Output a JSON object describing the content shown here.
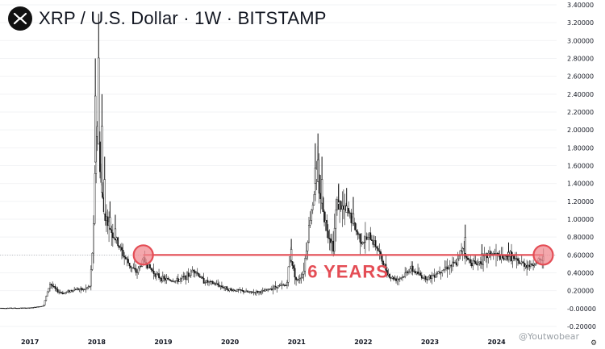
{
  "header": {
    "title": "XRP / U.S. Dollar · 1W · BITSTAMP"
  },
  "watermark": "@Youtwobear",
  "colors": {
    "candle": "#111111",
    "annotation": "#e44d55",
    "annotation_fill": "#f08a90"
  },
  "icons": {
    "logo": "xrp-logo-icon",
    "settings": "gear-icon"
  },
  "chart_data": {
    "type": "candlestick",
    "y_ticks": [
      "-0.20000",
      "-0.00000",
      "0.20000",
      "0.40000",
      "0.60000",
      "0.80000",
      "1.00000",
      "1.20000",
      "1.40000",
      "1.60000",
      "1.80000",
      "2.00000",
      "2.20000",
      "2.40000",
      "2.60000",
      "2.80000",
      "3.00000",
      "3.20000",
      "3.40000"
    ],
    "ylim": [
      -0.2,
      3.4
    ],
    "x_ticks": [
      "2017",
      "2018",
      "2019",
      "2020",
      "2021",
      "2022",
      "2023",
      "2024"
    ],
    "xlim": [
      2016.55,
      2024.9
    ],
    "resistance_level": 0.6,
    "resistance_start_marker": 2018.7,
    "resistance_end_marker": 2024.7,
    "annotation_text": "6 YEARS",
    "price_path": [
      [
        2016.55,
        0.006
      ],
      [
        2016.8,
        0.006
      ],
      [
        2017.0,
        0.007
      ],
      [
        2017.2,
        0.03
      ],
      [
        2017.3,
        0.28
      ],
      [
        2017.4,
        0.2
      ],
      [
        2017.5,
        0.17
      ],
      [
        2017.6,
        0.2
      ],
      [
        2017.7,
        0.22
      ],
      [
        2017.8,
        0.21
      ],
      [
        2017.9,
        0.25
      ],
      [
        2017.95,
        0.8
      ],
      [
        2018.0,
        2.2
      ],
      [
        2018.05,
        1.6
      ],
      [
        2018.1,
        1.1
      ],
      [
        2018.2,
        0.9
      ],
      [
        2018.3,
        0.75
      ],
      [
        2018.4,
        0.6
      ],
      [
        2018.5,
        0.48
      ],
      [
        2018.6,
        0.4
      ],
      [
        2018.7,
        0.55
      ],
      [
        2018.8,
        0.45
      ],
      [
        2018.9,
        0.37
      ],
      [
        2019.0,
        0.33
      ],
      [
        2019.2,
        0.31
      ],
      [
        2019.4,
        0.38
      ],
      [
        2019.45,
        0.45
      ],
      [
        2019.6,
        0.31
      ],
      [
        2019.8,
        0.27
      ],
      [
        2020.0,
        0.21
      ],
      [
        2020.15,
        0.2
      ],
      [
        2020.3,
        0.18
      ],
      [
        2020.5,
        0.19
      ],
      [
        2020.7,
        0.25
      ],
      [
        2020.85,
        0.26
      ],
      [
        2020.9,
        0.6
      ],
      [
        2021.0,
        0.3
      ],
      [
        2021.1,
        0.4
      ],
      [
        2021.2,
        1.0
      ],
      [
        2021.3,
        1.5
      ],
      [
        2021.35,
        1.3
      ],
      [
        2021.45,
        0.9
      ],
      [
        2021.55,
        0.7
      ],
      [
        2021.6,
        1.2
      ],
      [
        2021.7,
        1.1
      ],
      [
        2021.8,
        1.05
      ],
      [
        2021.9,
        0.85
      ],
      [
        2022.0,
        0.75
      ],
      [
        2022.1,
        0.8
      ],
      [
        2022.2,
        0.7
      ],
      [
        2022.3,
        0.5
      ],
      [
        2022.4,
        0.35
      ],
      [
        2022.5,
        0.33
      ],
      [
        2022.6,
        0.36
      ],
      [
        2022.7,
        0.45
      ],
      [
        2022.8,
        0.4
      ],
      [
        2022.9,
        0.35
      ],
      [
        2023.0,
        0.35
      ],
      [
        2023.1,
        0.4
      ],
      [
        2023.2,
        0.45
      ],
      [
        2023.3,
        0.48
      ],
      [
        2023.4,
        0.5
      ],
      [
        2023.5,
        0.72
      ],
      [
        2023.55,
        0.55
      ],
      [
        2023.7,
        0.5
      ],
      [
        2023.8,
        0.55
      ],
      [
        2023.9,
        0.62
      ],
      [
        2024.0,
        0.6
      ],
      [
        2024.1,
        0.55
      ],
      [
        2024.2,
        0.6
      ],
      [
        2024.3,
        0.52
      ],
      [
        2024.4,
        0.5
      ],
      [
        2024.5,
        0.48
      ],
      [
        2024.6,
        0.52
      ],
      [
        2024.7,
        0.55
      ]
    ],
    "spikes": [
      [
        2018.03,
        3.3
      ],
      [
        2017.98,
        2.8
      ],
      [
        2018.08,
        2.4
      ],
      [
        2018.12,
        1.7
      ],
      [
        2018.2,
        1.2
      ],
      [
        2018.28,
        1.05
      ],
      [
        2021.32,
        1.96
      ],
      [
        2021.28,
        1.85
      ],
      [
        2021.38,
        1.7
      ],
      [
        2021.63,
        1.4
      ],
      [
        2021.75,
        1.35
      ],
      [
        2021.85,
        1.25
      ],
      [
        2020.92,
        0.78
      ],
      [
        2023.53,
        0.94
      ],
      [
        2023.78,
        0.72
      ],
      [
        2024.18,
        0.74
      ]
    ]
  }
}
